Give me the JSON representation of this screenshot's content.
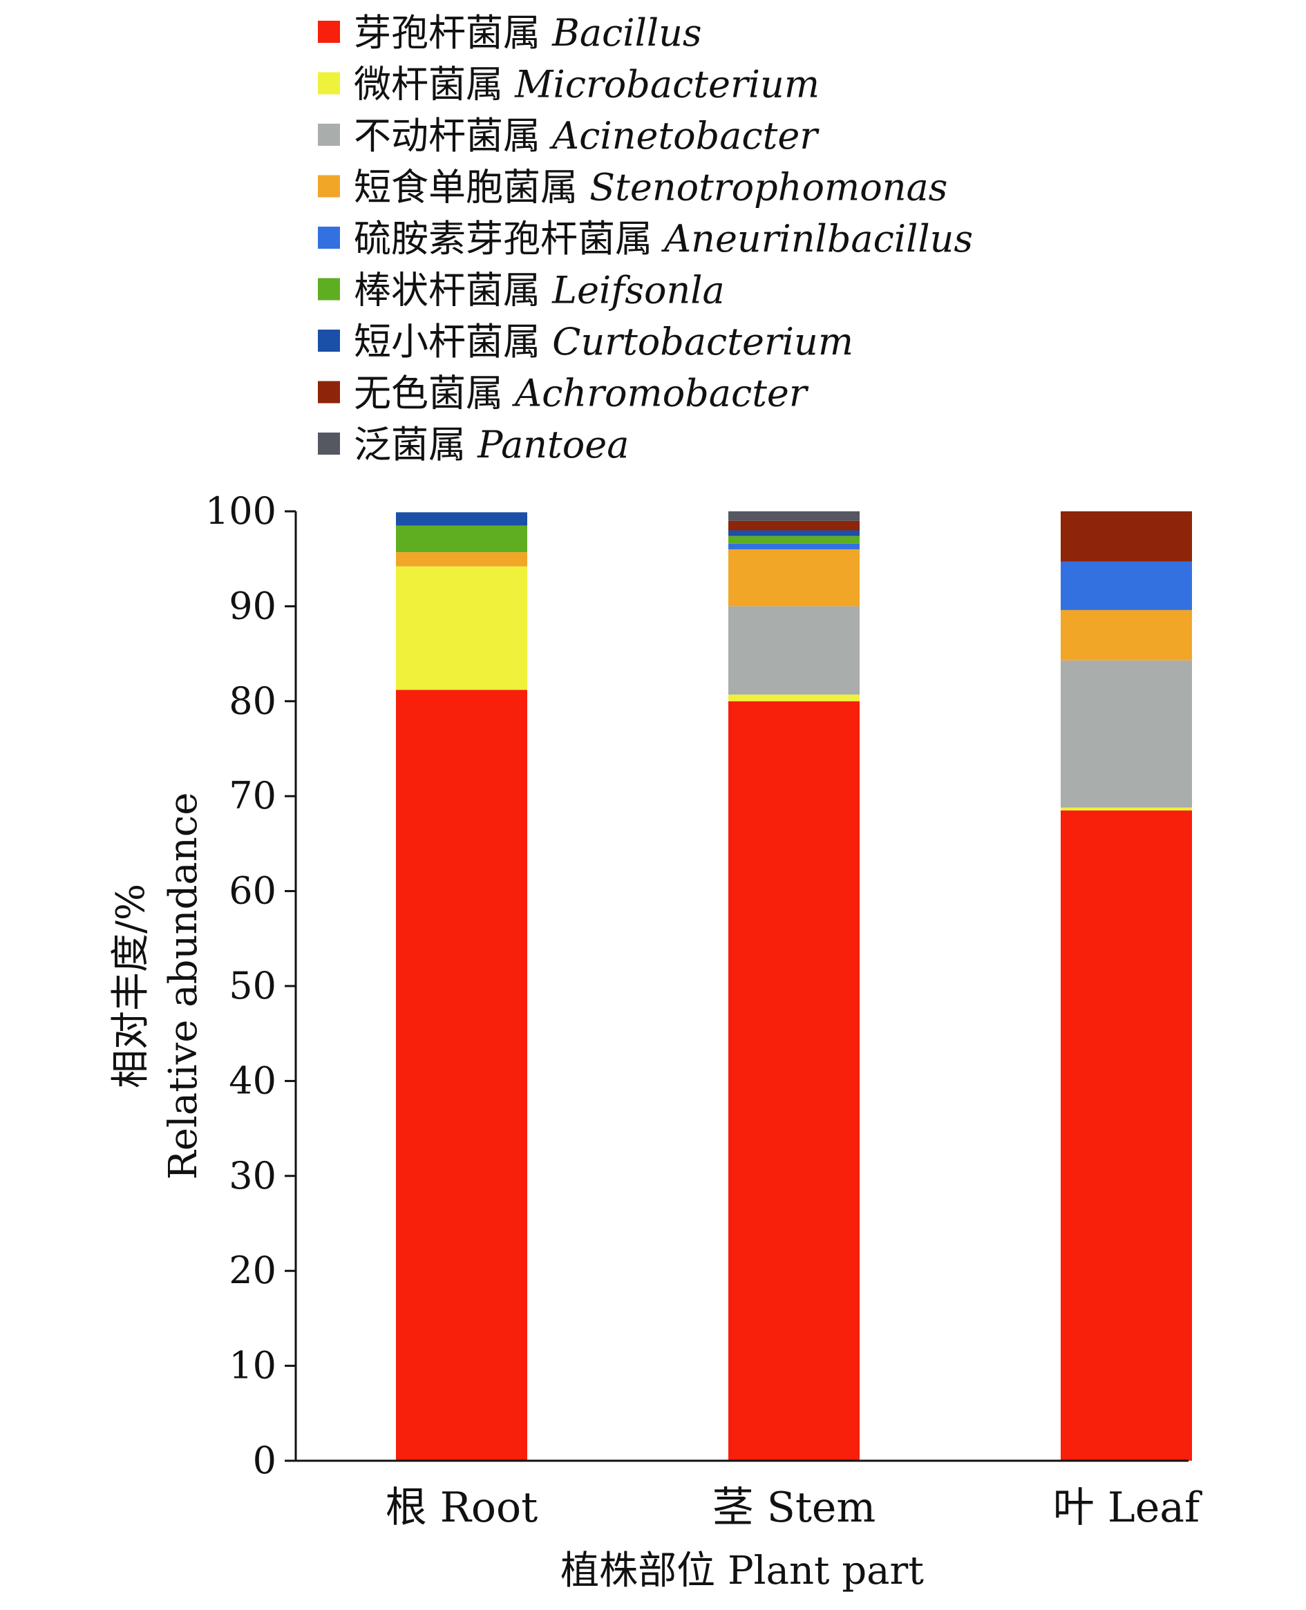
{
  "chart_data": {
    "type": "bar",
    "stacked": true,
    "xlabel": "植株部位 Plant part",
    "ylabel_zh": "相对丰度/%",
    "ylabel_en": "Relative abundance",
    "ylim": [
      0,
      100
    ],
    "yticks": [
      0,
      10,
      20,
      30,
      40,
      50,
      60,
      70,
      80,
      90,
      100
    ],
    "categories": [
      "根 Root",
      "茎 Stem",
      "叶 Leaf"
    ],
    "legend_position": "top-left",
    "series": [
      {
        "name_zh": "芽孢杆菌属",
        "name_en": "Bacillus",
        "color": "#f81f0b",
        "values": [
          81.2,
          80.0,
          68.5
        ]
      },
      {
        "name_zh": "微杆菌属",
        "name_en": "Microbacterium",
        "color": "#eef23a",
        "values": [
          13.0,
          0.7,
          0.3
        ]
      },
      {
        "name_zh": "不动杆菌属",
        "name_en": "Acinetobacter",
        "color": "#a9adab",
        "values": [
          0.0,
          9.3,
          15.5
        ]
      },
      {
        "name_zh": "短食单胞菌属",
        "name_en": "Stenotrophomonas",
        "color": "#f1a628",
        "values": [
          1.5,
          6.0,
          5.3
        ]
      },
      {
        "name_zh": "硫胺素芽孢杆菌属",
        "name_en": "Aneurinlbacillus",
        "color": "#3471e0",
        "values": [
          0.0,
          0.6,
          5.1
        ]
      },
      {
        "name_zh": "棒状杆菌属",
        "name_en": "Leifsonla",
        "color": "#5fae22",
        "values": [
          2.8,
          0.8,
          0.0
        ]
      },
      {
        "name_zh": "短小杆菌属",
        "name_en": "Curtobacterium",
        "color": "#1b4fa8",
        "values": [
          1.4,
          0.6,
          0.0
        ]
      },
      {
        "name_zh": "无色菌属",
        "name_en": "Achromobacter",
        "color": "#8e2408",
        "values": [
          0.0,
          1.0,
          5.3
        ]
      },
      {
        "name_zh": "泛菌属",
        "name_en": "Pantoea",
        "color": "#555761",
        "values": [
          0.0,
          1.0,
          0.0
        ]
      }
    ]
  }
}
